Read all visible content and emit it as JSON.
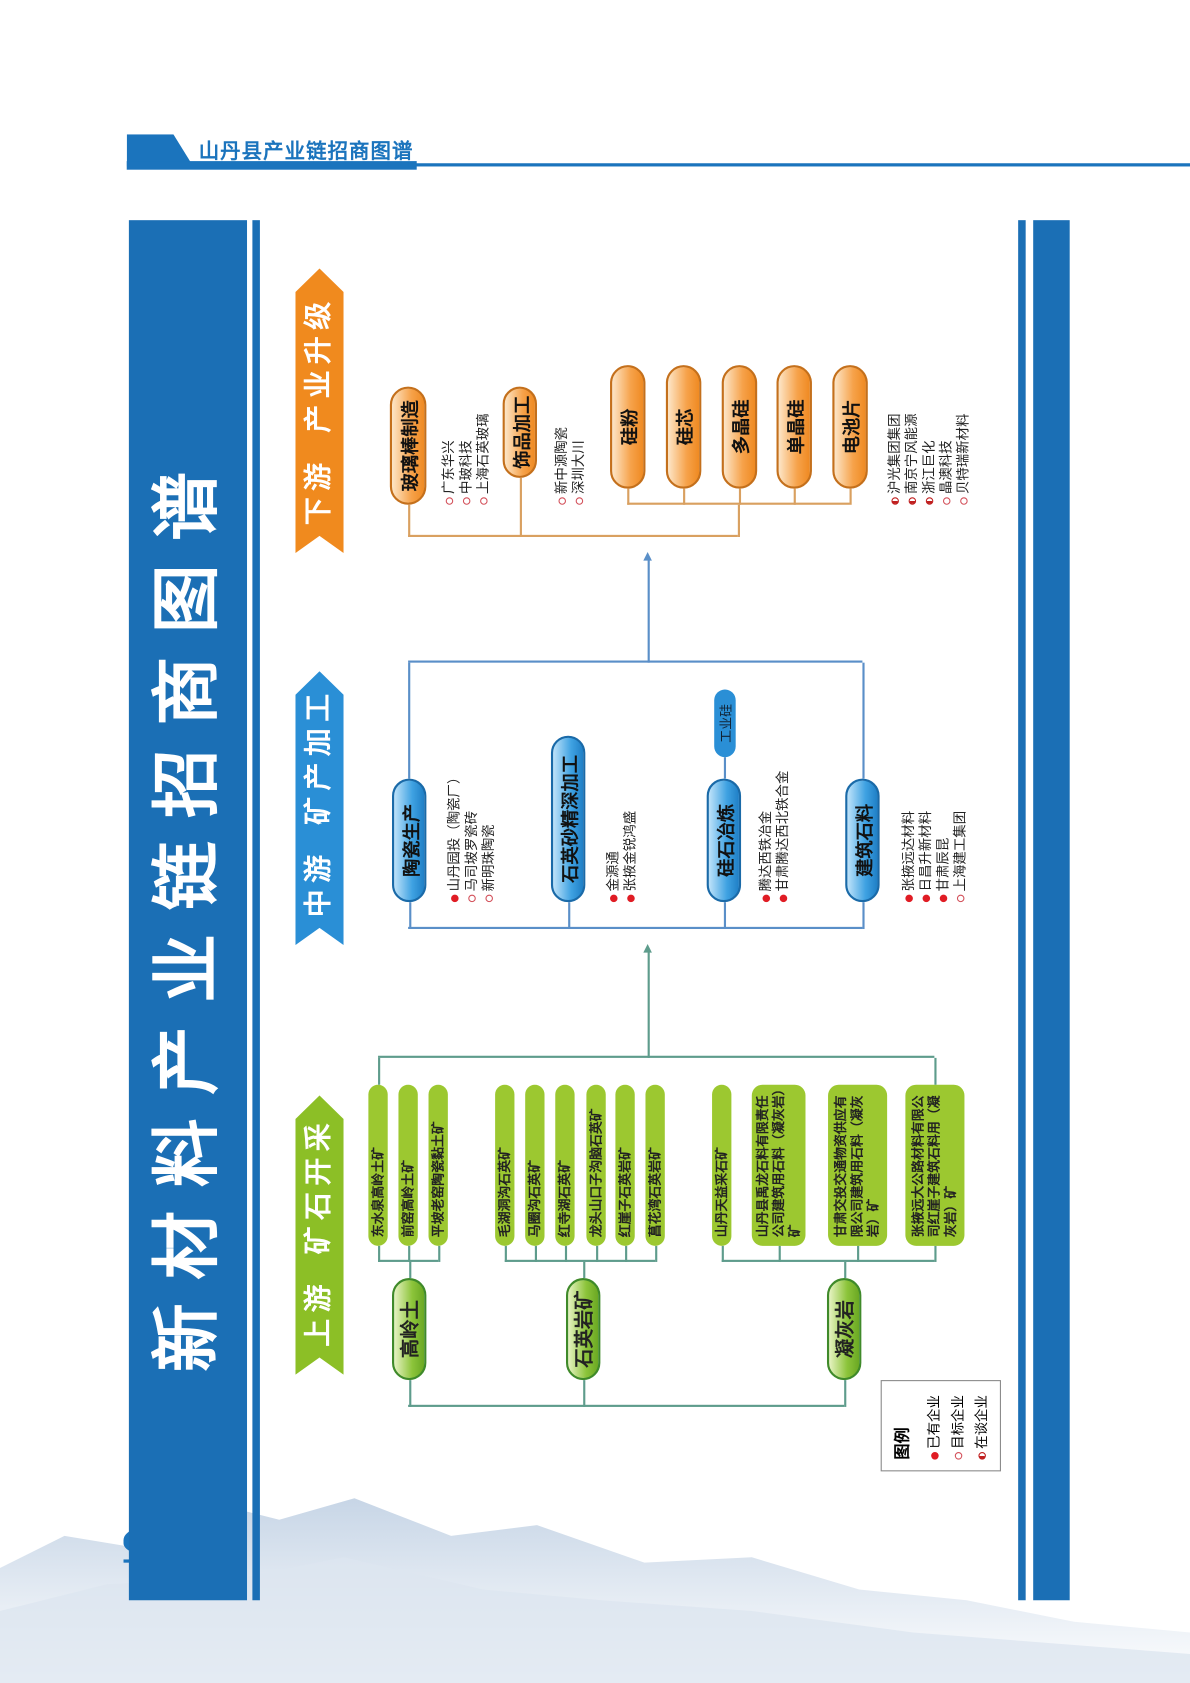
{
  "header": {
    "title": "山丹县产业链招商图谱"
  },
  "page_number": "16",
  "diagram": {
    "title": "新材料产业链招商图谱",
    "colors": {
      "upstream": "#8cbf26",
      "midstream": "#2a8fd6",
      "downstream": "#f08a1e",
      "frame": "#1b6fb5"
    },
    "upstream": {
      "label": "上游",
      "sublabel": "矿石开采",
      "groups": [
        {
          "name": "高岭土",
          "mines": [
            "东水泉高岭土矿",
            "前窑高岭土矿",
            "平坡老窑陶瓷黏土矿"
          ]
        },
        {
          "name": "石英岩矿",
          "mines": [
            "毛湖洞沟石英矿",
            "马圈沟石英矿",
            "红寺湖石英矿",
            "龙头山口子沟脑石英矿",
            "红崖子石英岩矿",
            "菖花湾石英岩矿"
          ]
        },
        {
          "name": "凝灰岩",
          "mines": [
            "山丹天益采石矿",
            "山丹县禹龙石料有限责任公司建筑用石料（凝灰岩）矿",
            "甘肃交投交通物资供应有限公司建筑用石料（凝灰岩）矿",
            "张掖远大公路材料有限公司红崖子建筑石料用（凝灰岩）矿"
          ]
        }
      ]
    },
    "midstream": {
      "label": "中游",
      "sublabel": "矿产加工",
      "nodes": [
        {
          "name": "陶瓷生产",
          "companies": [
            {
              "name": "山丹园投（陶瓷厂）",
              "status": "exist"
            },
            {
              "name": "马司坡罗瓷砖",
              "status": "target"
            },
            {
              "name": "新明珠陶瓷",
              "status": "target"
            }
          ]
        },
        {
          "name": "石英砂精深加工",
          "companies": [
            {
              "name": "金源通",
              "status": "exist"
            },
            {
              "name": "张掖金锐鸿盛",
              "status": "exist"
            }
          ]
        },
        {
          "name": "硅石冶炼",
          "sub": "工业硅",
          "companies": [
            {
              "name": "腾达西铁冶金",
              "status": "exist"
            },
            {
              "name": "甘肃腾达西北铁合金",
              "status": "exist"
            }
          ]
        },
        {
          "name": "建筑石料",
          "companies": [
            {
              "name": "张掖远达材料",
              "status": "exist"
            },
            {
              "name": "日昌升新材料",
              "status": "exist"
            },
            {
              "name": "甘肃辰昆",
              "status": "exist"
            },
            {
              "name": "上海建工集团",
              "status": "target"
            }
          ]
        }
      ]
    },
    "downstream": {
      "label": "下游",
      "sublabel": "产业升级",
      "nodes": [
        {
          "name": "玻璃棒制造",
          "companies": [
            {
              "name": "广东华兴",
              "status": "target"
            },
            {
              "name": "中玻科技",
              "status": "target"
            },
            {
              "name": "上海石英玻璃",
              "status": "target"
            }
          ]
        },
        {
          "name": "饰品加工",
          "companies": [
            {
              "name": "新中源陶瓷",
              "status": "target"
            },
            {
              "name": "深圳大川",
              "status": "target"
            }
          ]
        }
      ],
      "silicon_chain": [
        "硅粉",
        "硅芯",
        "多晶硅",
        "单晶硅",
        "电池片"
      ],
      "silicon_companies": [
        {
          "name": "沪光集团集团",
          "status": "talk"
        },
        {
          "name": "南京宁风能源",
          "status": "talk"
        },
        {
          "name": "浙江巨化",
          "status": "talk"
        },
        {
          "name": "晶澳科技",
          "status": "target"
        },
        {
          "name": "贝特瑞新材料",
          "status": "target"
        }
      ]
    },
    "legend": {
      "title": "图例",
      "items": [
        {
          "label": "已有企业",
          "status": "exist"
        },
        {
          "label": "目标企业",
          "status": "target"
        },
        {
          "label": "在谈企业",
          "status": "talk"
        }
      ]
    }
  }
}
